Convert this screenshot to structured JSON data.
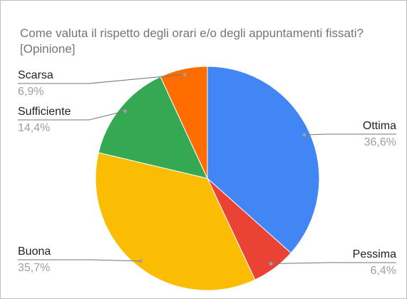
{
  "chart_data": {
    "type": "pie",
    "title": "Come valuta il rispetto degli orari e/o degli appuntamenti fissati? [Opinione]",
    "categories": [
      "Ottima",
      "Pessima",
      "Buona",
      "Sufficiente",
      "Scarsa"
    ],
    "values": [
      36.6,
      6.4,
      35.7,
      14.4,
      6.9
    ],
    "value_labels": [
      "36,6%",
      "6,4%",
      "35,7%",
      "14,4%",
      "6,9%"
    ],
    "colors": [
      "#4285f4",
      "#ea4335",
      "#fbbc04",
      "#34a853",
      "#ff6d01"
    ]
  }
}
